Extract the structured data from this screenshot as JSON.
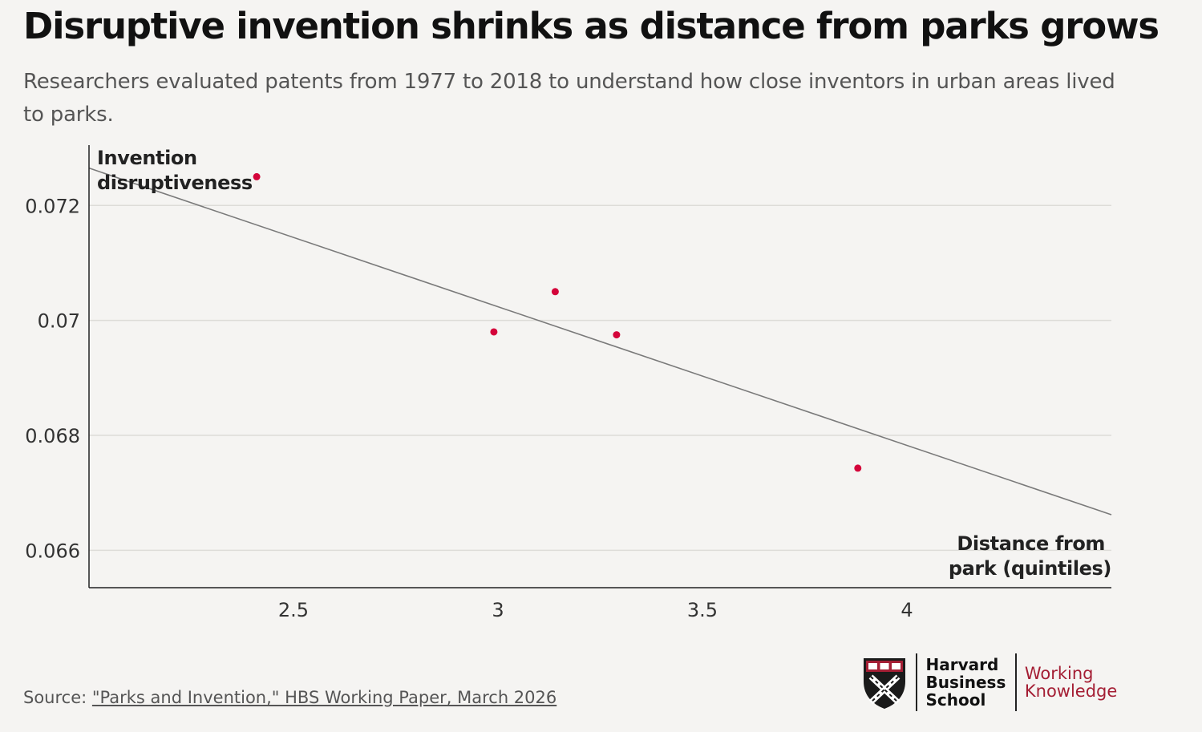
{
  "header": {
    "title": "Disruptive invention shrinks as distance from parks grows",
    "subtitle": "Researchers evaluated patents from 1977 to 2018 to understand how close inventors in urban areas lived to parks."
  },
  "chart_data": {
    "type": "scatter",
    "ylabel_lines": [
      "Invention",
      "disruptiveness"
    ],
    "xlabel_lines": [
      "Distance from",
      "park (quintiles)"
    ],
    "xlim": [
      2.0,
      4.5
    ],
    "ylim": [
      0.06535,
      0.07305
    ],
    "x_ticks": [
      2.5,
      3,
      3.5,
      4
    ],
    "x_tick_labels": [
      "2.5",
      "3",
      "3.5",
      "4"
    ],
    "y_ticks": [
      0.066,
      0.068,
      0.07,
      0.072
    ],
    "y_tick_labels": [
      "0.066",
      "0.068",
      "0.07",
      "0.072"
    ],
    "grid": true,
    "point_color": "#d4043a",
    "trend_color": "#7a7a7a",
    "points": [
      {
        "x": 2.41,
        "y": 0.0725
      },
      {
        "x": 2.99,
        "y": 0.0698
      },
      {
        "x": 3.14,
        "y": 0.0705
      },
      {
        "x": 3.29,
        "y": 0.06975
      },
      {
        "x": 3.88,
        "y": 0.06743
      }
    ],
    "trendline": {
      "x": [
        2.0,
        4.5
      ],
      "y": [
        0.07265,
        0.06662
      ]
    }
  },
  "footer": {
    "source_prefix": "Source: ",
    "source_link": "\"Parks and Invention,\" HBS Working Paper, March 2026",
    "logo": {
      "icon": "hbs-shield-icon",
      "line1": "Harvard",
      "line2": "Business",
      "line3": "School",
      "wk_line1": "Working",
      "wk_line2": "Knowledge",
      "brand_color": "#a41e34"
    }
  }
}
